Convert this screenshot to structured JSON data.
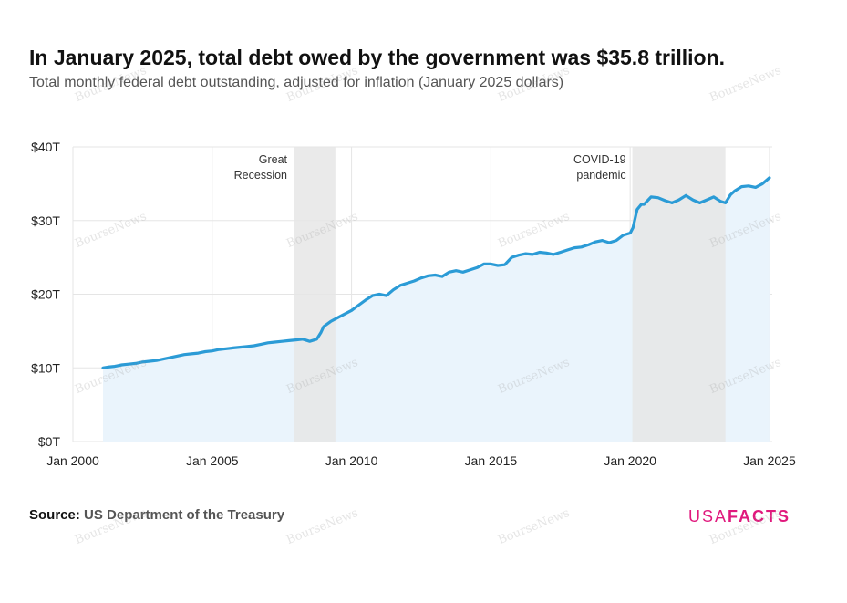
{
  "title": "In January 2025, total debt owed by the government was $35.8 trillion.",
  "subtitle": "Total monthly federal debt outstanding, adjusted for inflation (January 2025 dollars)",
  "source": {
    "label": "Source:",
    "value": "US Department of the Treasury"
  },
  "logo": {
    "part1": "USA",
    "part2": "FACTS",
    "color": "#e0197d"
  },
  "watermark": "BourseNews",
  "colors": {
    "line": "#2b9bd6",
    "area": "#eaf4fc",
    "recession_band": "#e6e6e6",
    "grid": "#e5e5e5"
  },
  "chart_data": {
    "type": "area",
    "y_tick_labels": [
      "$0T",
      "$10T",
      "$20T",
      "$30T",
      "$40T"
    ],
    "y_ticks": [
      0,
      10,
      20,
      30,
      40
    ],
    "ylim": [
      0,
      40
    ],
    "x_tick_labels": [
      "Jan 2000",
      "Jan 2005",
      "Jan 2010",
      "Jan 2015",
      "Jan 2020",
      "Jan 2025"
    ],
    "x_ticks": [
      2000,
      2005,
      2010,
      2015,
      2020,
      2025
    ],
    "xlim": [
      2000,
      2025.1
    ],
    "grid": true,
    "shaded_periods": [
      {
        "label_lines": [
          "Great",
          "Recession"
        ],
        "start": 2007.92,
        "end": 2009.42
      },
      {
        "label_lines": [
          "COVID-19",
          "pandemic"
        ],
        "start": 2020.08,
        "end": 2023.42
      }
    ],
    "series": [
      {
        "x": [
          2001.08,
          2001.25,
          2001.5,
          2001.75,
          2002.0,
          2002.25,
          2002.5,
          2002.75,
          2003.0,
          2003.25,
          2003.5,
          2003.75,
          2004.0,
          2004.25,
          2004.5,
          2004.75,
          2005.0,
          2005.25,
          2005.5,
          2005.75,
          2006.0,
          2006.25,
          2006.5,
          2006.75,
          2007.0,
          2007.25,
          2007.5,
          2007.75,
          2008.0,
          2008.25,
          2008.5,
          2008.75,
          2008.9,
          2009.0,
          2009.25,
          2009.5,
          2009.75,
          2010.0,
          2010.25,
          2010.5,
          2010.75,
          2011.0,
          2011.25,
          2011.5,
          2011.75,
          2012.0,
          2012.25,
          2012.5,
          2012.75,
          2013.0,
          2013.25,
          2013.5,
          2013.75,
          2014.0,
          2014.25,
          2014.5,
          2014.75,
          2015.0,
          2015.25,
          2015.5,
          2015.75,
          2016.0,
          2016.25,
          2016.5,
          2016.75,
          2017.0,
          2017.25,
          2017.5,
          2017.75,
          2018.0,
          2018.25,
          2018.5,
          2018.75,
          2019.0,
          2019.25,
          2019.5,
          2019.75,
          2020.0,
          2020.1,
          2020.25,
          2020.4,
          2020.5,
          2020.75,
          2021.0,
          2021.25,
          2021.5,
          2021.75,
          2022.0,
          2022.25,
          2022.5,
          2022.75,
          2023.0,
          2023.25,
          2023.42,
          2023.6,
          2023.75,
          2024.0,
          2024.25,
          2024.5,
          2024.75,
          2025.0
        ],
        "y": [
          10.0,
          10.1,
          10.2,
          10.4,
          10.5,
          10.6,
          10.8,
          10.9,
          11.0,
          11.2,
          11.4,
          11.6,
          11.8,
          11.9,
          12.0,
          12.2,
          12.3,
          12.5,
          12.6,
          12.7,
          12.8,
          12.9,
          13.0,
          13.2,
          13.4,
          13.5,
          13.6,
          13.7,
          13.8,
          13.9,
          13.6,
          13.9,
          14.8,
          15.6,
          16.3,
          16.8,
          17.3,
          17.8,
          18.5,
          19.2,
          19.8,
          20.0,
          19.8,
          20.6,
          21.2,
          21.5,
          21.8,
          22.2,
          22.5,
          22.6,
          22.4,
          23.0,
          23.2,
          23.0,
          23.3,
          23.6,
          24.1,
          24.1,
          23.9,
          24.0,
          25.0,
          25.3,
          25.5,
          25.4,
          25.7,
          25.6,
          25.4,
          25.7,
          26.0,
          26.3,
          26.4,
          26.7,
          27.1,
          27.3,
          27.0,
          27.3,
          28.0,
          28.3,
          29.0,
          31.5,
          32.2,
          32.2,
          33.2,
          33.1,
          32.7,
          32.4,
          32.8,
          33.4,
          32.8,
          32.4,
          32.8,
          33.2,
          32.6,
          32.4,
          33.5,
          34.0,
          34.6,
          34.7,
          34.5,
          35.0,
          35.8
        ]
      }
    ]
  }
}
